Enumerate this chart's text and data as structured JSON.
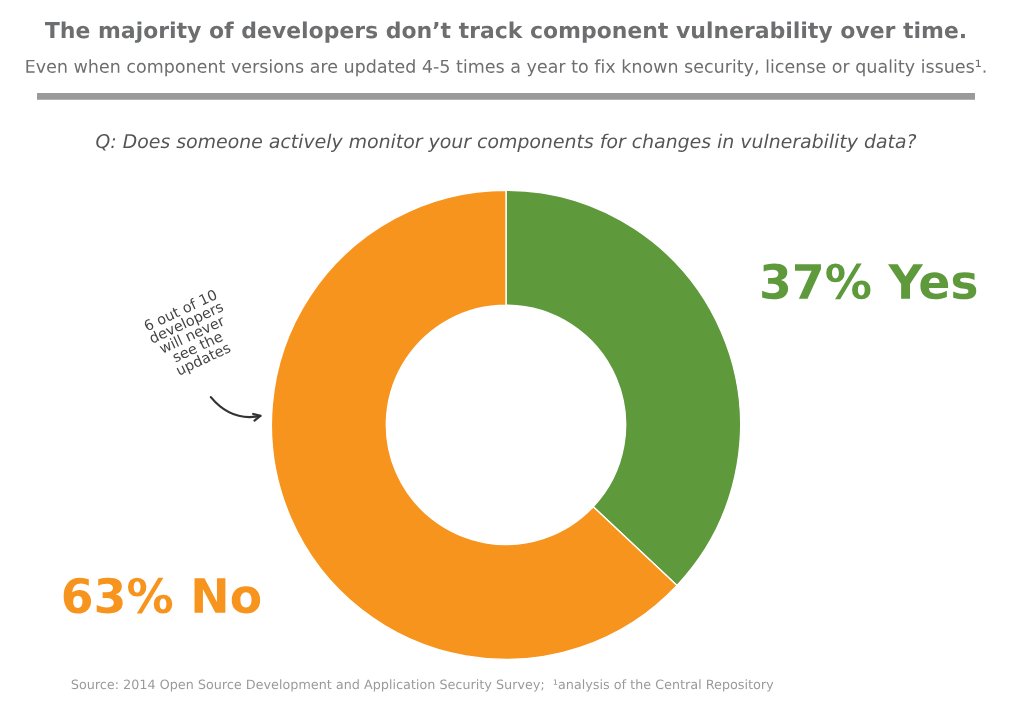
{
  "chart_data": {
    "type": "donut",
    "title": "The majority of developers don’t track component vulnerability over time.",
    "subtitle": "Even when component versions are updated 4-5 times a year to fix known security, license or quality issues¹.",
    "categories": [
      "Yes",
      "No"
    ],
    "values": [
      37,
      63
    ],
    "colors": [
      "#5e9a3c",
      "#f7941d"
    ],
    "value_labels": [
      "37%",
      "63%"
    ],
    "annotations": [
      "Q: Does someone actively monitor your components for changes in vulnerability data?",
      "6 out of 10\ndevelopers\nwill never\nsee the\nupdates",
      "Source: 2014 Open Source Development and Application Security Survey;  ¹analysis of the Central Repository"
    ]
  }
}
